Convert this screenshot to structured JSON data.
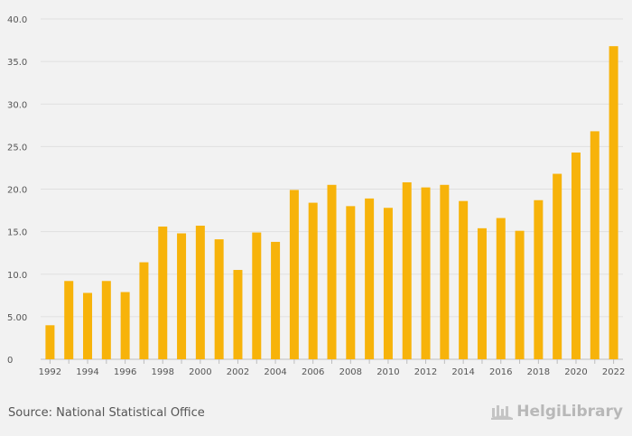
{
  "chart_data": {
    "type": "bar",
    "categories": [
      "1992",
      "1993",
      "1994",
      "1995",
      "1996",
      "1997",
      "1998",
      "1999",
      "2000",
      "2001",
      "2002",
      "2003",
      "2004",
      "2005",
      "2006",
      "2007",
      "2008",
      "2009",
      "2010",
      "2011",
      "2012",
      "2013",
      "2014",
      "2015",
      "2016",
      "2017",
      "2018",
      "2019",
      "2020",
      "2021",
      "2022"
    ],
    "x_tick_labels": [
      "1992",
      "1994",
      "1996",
      "1998",
      "2000",
      "2002",
      "2004",
      "2006",
      "2008",
      "2010",
      "2012",
      "2014",
      "2016",
      "2018",
      "2020",
      "2022"
    ],
    "values": [
      4.0,
      9.2,
      7.8,
      9.2,
      7.9,
      11.4,
      15.6,
      14.8,
      15.7,
      14.1,
      10.5,
      14.9,
      13.8,
      19.9,
      18.4,
      20.5,
      18.0,
      18.9,
      17.8,
      20.8,
      20.2,
      20.5,
      18.6,
      15.4,
      16.6,
      15.1,
      18.7,
      21.8,
      24.3,
      26.8,
      36.8
    ],
    "ylim": [
      0,
      40
    ],
    "y_ticks": [
      0,
      5,
      10,
      15,
      20,
      25,
      30,
      35,
      40
    ],
    "y_tick_labels": [
      "0",
      "5.00",
      "10.0",
      "15.0",
      "20.0",
      "25.0",
      "30.0",
      "35.0",
      "40.0"
    ],
    "grid": true,
    "bar_color": "#f7b30a",
    "title": "",
    "xlabel": "",
    "ylabel": ""
  },
  "footer": {
    "source": "Source: National Statistical Office",
    "logo_text": "HelgiLibrary"
  }
}
